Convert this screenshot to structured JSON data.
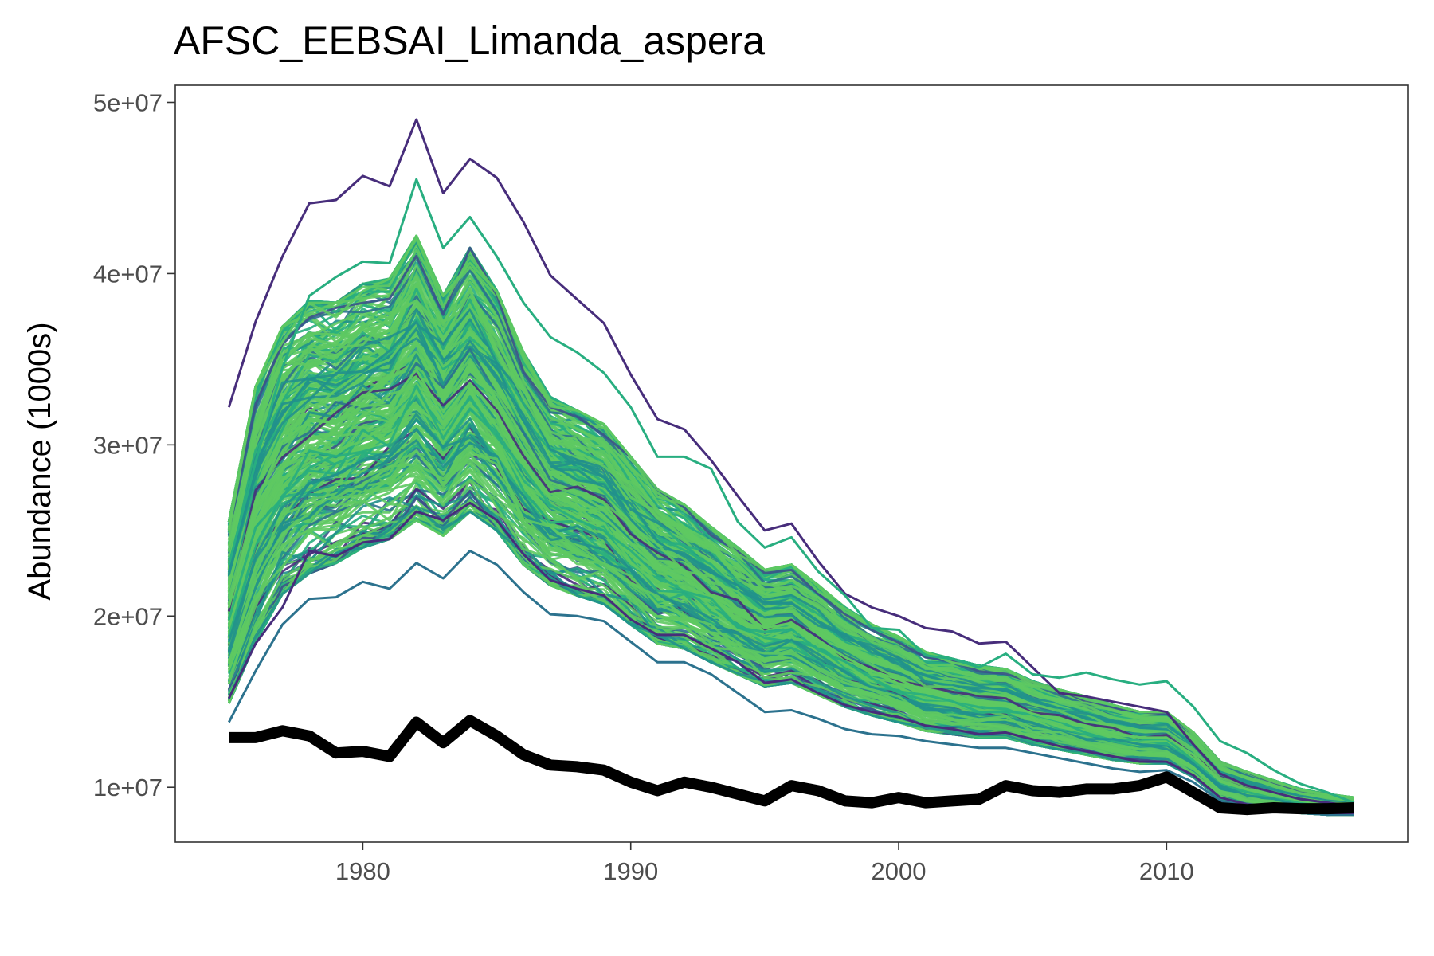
{
  "chart_data": {
    "type": "line",
    "title": "AFSC_EEBSAI_Limanda_aspera",
    "xlabel": "",
    "ylabel": "Abundance (1000s)",
    "xlim": [
      1973,
      2019
    ],
    "ylim": [
      6800000,
      51000000
    ],
    "x_ticks": [
      1980,
      1990,
      2000,
      2010
    ],
    "x_tick_labels": [
      "1980",
      "1990",
      "2000",
      "2010"
    ],
    "y_ticks": [
      10000000,
      20000000,
      30000000,
      40000000,
      50000000
    ],
    "y_tick_labels": [
      "1e+07",
      "2e+07",
      "3e+07",
      "4e+07",
      "5e+07"
    ],
    "grid": false,
    "legend": "none",
    "x": [
      1975,
      1976,
      1977,
      1978,
      1979,
      1980,
      1981,
      1982,
      1983,
      1984,
      1985,
      1986,
      1987,
      1988,
      1989,
      1990,
      1991,
      1992,
      1993,
      1994,
      1995,
      1996,
      1997,
      1998,
      1999,
      2000,
      2001,
      2002,
      2003,
      2004,
      2005,
      2006,
      2007,
      2008,
      2009,
      2010,
      2011,
      2012,
      2013,
      2014,
      2015,
      2016,
      2017
    ],
    "observed": {
      "color": "#000000",
      "values": [
        12900000,
        12900000,
        13300000,
        13000000,
        12000000,
        12100000,
        11800000,
        13800000,
        12600000,
        13900000,
        13000000,
        11900000,
        11300000,
        11200000,
        11000000,
        10300000,
        9800000,
        10300000,
        10000000,
        9600000,
        9200000,
        10100000,
        9800000,
        9200000,
        9100000,
        9400000,
        9100000,
        9200000,
        9300000,
        10100000,
        9800000,
        9700000,
        9900000,
        9900000,
        10100000,
        10600000,
        9700000,
        8800000,
        8700000,
        8800000,
        8750000,
        8750000,
        8800000
      ]
    },
    "simulations": {
      "count": 300,
      "palette": [
        "#440154",
        "#472d7b",
        "#3b528b",
        "#2c728e",
        "#21918c",
        "#28ae80",
        "#5ec962"
      ],
      "mean": [
        20500000,
        26500000,
        30200000,
        31400000,
        31300000,
        32300000,
        32300000,
        34400000,
        31600000,
        33600000,
        31800000,
        29000000,
        27000000,
        26400000,
        25800000,
        24300000,
        22800000,
        22200000,
        21200000,
        20300000,
        19300000,
        19600000,
        18600000,
        17600000,
        16800000,
        16300000,
        15600000,
        15300000,
        15000000,
        14900000,
        14300000,
        13900000,
        13600000,
        13200000,
        12900000,
        12900000,
        11900000,
        10400000,
        9900000,
        9600000,
        9200000,
        9000000,
        8900000
      ],
      "low": [
        14900000,
        18500000,
        21300000,
        22500000,
        23100000,
        24000000,
        24500000,
        25600000,
        24700000,
        26100000,
        25000000,
        23000000,
        21800000,
        21200000,
        20700000,
        19500000,
        18400000,
        18100000,
        17300000,
        16600000,
        15900000,
        16100000,
        15400000,
        14700000,
        14200000,
        13800000,
        13300000,
        13100000,
        12900000,
        12900000,
        12500000,
        12200000,
        11900000,
        11600000,
        11400000,
        11400000,
        10600000,
        9300000,
        8900000,
        8700000,
        8500000,
        8400000,
        8400000
      ],
      "high": [
        25500000,
        33400000,
        36900000,
        38400000,
        38300000,
        39400000,
        39700000,
        42200000,
        38700000,
        41500000,
        39000000,
        35400000,
        32800000,
        32000000,
        31200000,
        29300000,
        27400000,
        26500000,
        25200000,
        24000000,
        22700000,
        23000000,
        21800000,
        20500000,
        19500000,
        18800000,
        17900000,
        17500000,
        17100000,
        16900000,
        16200000,
        15700000,
        15300000,
        14800000,
        14400000,
        14400000,
        13200000,
        11500000,
        10900000,
        10400000,
        9900000,
        9600000,
        9400000
      ]
    },
    "outlier_series": [
      {
        "color": "#472d7b",
        "values": [
          32200000,
          37200000,
          41000000,
          44100000,
          44300000,
          45700000,
          45100000,
          49000000,
          44700000,
          46700000,
          45600000,
          43000000,
          39900000,
          38500000,
          37100000,
          34100000,
          31500000,
          30900000,
          29100000,
          27000000,
          25000000,
          25400000,
          23200000,
          21300000,
          20500000,
          20000000,
          19300000,
          19100000,
          18400000,
          18500000,
          17000000,
          15500000,
          15300000,
          15000000,
          14700000,
          14400000,
          12500000,
          10800000,
          10100000,
          9700000,
          9300000,
          9100000,
          8900000
        ]
      },
      {
        "color": "#28ae80",
        "values": [
          23000000,
          29000000,
          34500000,
          38700000,
          39800000,
          40700000,
          40600000,
          45500000,
          41500000,
          43300000,
          41000000,
          38300000,
          36300000,
          35400000,
          34200000,
          32200000,
          29300000,
          29300000,
          28600000,
          25500000,
          24000000,
          24600000,
          22600000,
          21200000,
          19300000,
          19200000,
          17700000,
          17500000,
          17000000,
          17800000,
          16600000,
          16400000,
          16700000,
          16300000,
          16000000,
          16200000,
          14700000,
          12700000,
          12000000,
          11000000,
          10200000,
          9700000,
          9100000
        ]
      },
      {
        "color": "#2c728e",
        "values": [
          13800000,
          16800000,
          19500000,
          21000000,
          21100000,
          22000000,
          21600000,
          23100000,
          22200000,
          23800000,
          23000000,
          21400000,
          20100000,
          20000000,
          19700000,
          18500000,
          17300000,
          17300000,
          16600000,
          15500000,
          14400000,
          14500000,
          14000000,
          13400000,
          13100000,
          13000000,
          12700000,
          12500000,
          12300000,
          12300000,
          12000000,
          11700000,
          11400000,
          11100000,
          10900000,
          11000000,
          10300000,
          9200000,
          8900000,
          8700000,
          8500000,
          8400000,
          8400000
        ]
      },
      {
        "color": "#472d7b",
        "values": [
          15200000,
          18400000,
          20500000,
          23800000,
          23500000,
          24300000,
          24500000,
          26100000,
          25600000,
          26600000,
          25600000,
          23600000,
          22100000,
          21600000,
          21200000,
          19800000,
          18900000,
          18900000,
          18100000,
          17300000,
          16100000,
          16300000,
          15500000,
          14800000,
          14400000,
          14100000,
          13600000,
          13400000,
          13100000,
          13200000,
          12800000,
          12400000,
          12100000,
          11800000,
          11500000,
          11500000,
          10700000,
          9400000,
          9000000,
          8800000,
          8600000,
          8500000,
          8500000
        ]
      }
    ]
  }
}
